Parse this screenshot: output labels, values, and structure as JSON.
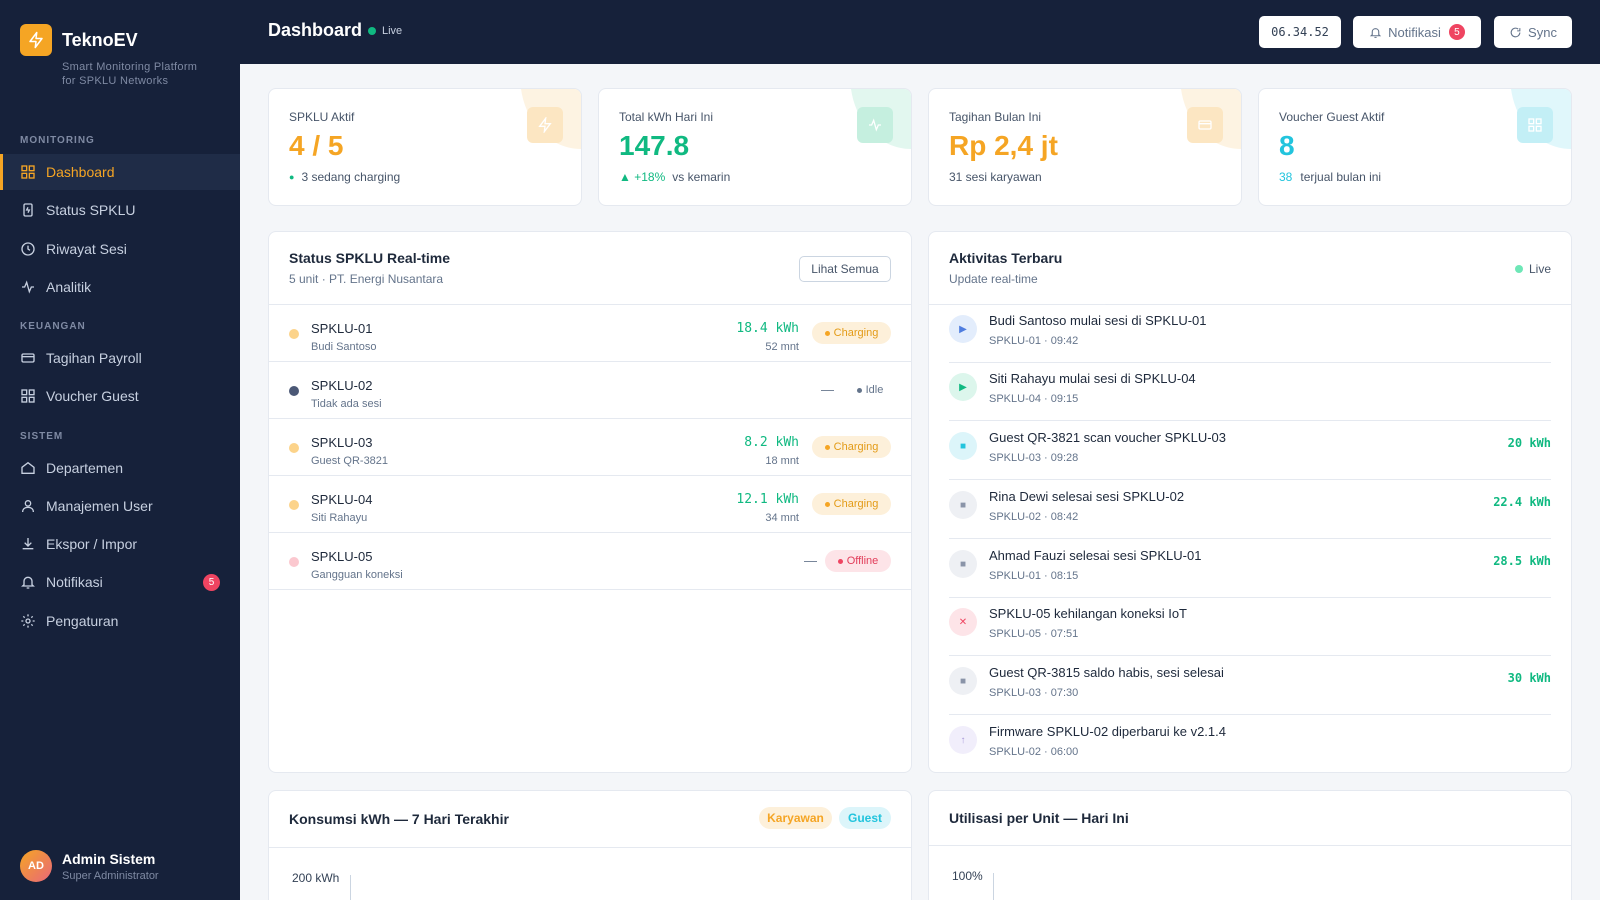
{
  "app": {
    "name": "TeknoEV",
    "subtitle_line1": "Smart Monitoring Platform",
    "subtitle_line2": "for SPKLU Networks"
  },
  "sidebar": {
    "sections": {
      "monitoring": "MONITORING",
      "keuangan": "KEUANGAN",
      "sistem": "SISTEM"
    },
    "items": [
      {
        "label": "Dashboard",
        "icon": "grid-icon",
        "active": true
      },
      {
        "label": "Status SPKLU",
        "icon": "charger-icon"
      },
      {
        "label": "Riwayat Sesi",
        "icon": "clock-icon"
      },
      {
        "label": "Analitik",
        "icon": "activity-icon"
      },
      {
        "label": "Tagihan Payroll",
        "icon": "card-icon"
      },
      {
        "label": "Voucher Guest",
        "icon": "qr-icon"
      },
      {
        "label": "Departemen",
        "icon": "home-icon"
      },
      {
        "label": "Manajemen User",
        "icon": "user-icon"
      },
      {
        "label": "Ekspor / Impor",
        "icon": "download-icon"
      },
      {
        "label": "Notifikasi",
        "icon": "bell-icon",
        "badge": "5"
      },
      {
        "label": "Pengaturan",
        "icon": "gear-icon"
      }
    ],
    "user": {
      "initials": "AD",
      "name": "Admin Sistem",
      "role": "Super Administrator"
    }
  },
  "header": {
    "title": "Dashboard",
    "live_label": "Live",
    "clock": "06.34.52",
    "notif_label": "Notifikasi",
    "notif_count": "5",
    "sync_label": "Sync"
  },
  "stats": [
    {
      "label": "SPKLU Aktif",
      "value": "4 / 5",
      "sub_prefix": "●",
      "sub": "3 sedang charging",
      "color": "#f5a524"
    },
    {
      "label": "Total kWh Hari Ini",
      "value": "147.8",
      "sub_prefix": "▲ +18%",
      "sub": "vs kemarin",
      "color": "#10b981"
    },
    {
      "label": "Tagihan Bulan Ini",
      "value": "Rp 2,4 jt",
      "sub_prefix": "",
      "sub": "31 sesi karyawan",
      "color": "#f5a524"
    },
    {
      "label": "Voucher Guest Aktif",
      "value": "8",
      "sub_prefix": "38",
      "sub": "terjual bulan ini",
      "color": "#22c4dd"
    }
  ],
  "status_panel": {
    "title": "Status SPKLU Real-time",
    "subtitle": "5 unit · PT. Energi Nusantara",
    "button": "Lihat Semua",
    "rows": [
      {
        "name": "SPKLU-01",
        "user": "Budi Santoso",
        "kwh": "18.4 kWh",
        "duration": "52 mnt",
        "status": "Charging",
        "state": "charging"
      },
      {
        "name": "SPKLU-02",
        "user": "Tidak ada sesi",
        "kwh": "—",
        "duration": "",
        "status": "Idle",
        "state": "idle"
      },
      {
        "name": "SPKLU-03",
        "user": "Guest QR-3821",
        "kwh": "8.2 kWh",
        "duration": "18 mnt",
        "status": "Charging",
        "state": "charging"
      },
      {
        "name": "SPKLU-04",
        "user": "Siti Rahayu",
        "kwh": "12.1 kWh",
        "duration": "34 mnt",
        "status": "Charging",
        "state": "charging"
      },
      {
        "name": "SPKLU-05",
        "user": "Gangguan koneksi",
        "kwh": "—",
        "duration": "",
        "status": "Offline",
        "state": "offline"
      }
    ]
  },
  "activity_panel": {
    "title": "Aktivitas Terbaru",
    "subtitle": "Update real-time",
    "live_label": "Live",
    "items": [
      {
        "text": "Budi Santoso mulai sesi di SPKLU-01",
        "meta": "SPKLU-01 · 09:42",
        "kwh": "",
        "type": "start-blue"
      },
      {
        "text": "Siti Rahayu mulai sesi di SPKLU-04",
        "meta": "SPKLU-04 · 09:15",
        "kwh": "",
        "type": "start-green"
      },
      {
        "text": "Guest QR-3821 scan voucher SPKLU-03",
        "meta": "SPKLU-03 · 09:28",
        "kwh": "20 kWh",
        "type": "scan"
      },
      {
        "text": "Rina Dewi selesai sesi SPKLU-02",
        "meta": "SPKLU-02 · 08:42",
        "kwh": "22.4 kWh",
        "type": "stop"
      },
      {
        "text": "Ahmad Fauzi selesai sesi SPKLU-01",
        "meta": "SPKLU-01 · 08:15",
        "kwh": "28.5 kWh",
        "type": "stop"
      },
      {
        "text": "SPKLU-05 kehilangan koneksi IoT",
        "meta": "SPKLU-05 · 07:51",
        "kwh": "",
        "type": "error"
      },
      {
        "text": "Guest QR-3815 saldo habis, sesi selesai",
        "meta": "SPKLU-03 · 07:30",
        "kwh": "30 kWh",
        "type": "stop"
      },
      {
        "text": "Firmware SPKLU-02 diperbarui ke v2.1.4",
        "meta": "SPKLU-02 · 06:00",
        "kwh": "",
        "type": "update"
      }
    ]
  },
  "consumption_panel": {
    "title": "Konsumsi kWh — 7 Hari Terakhir",
    "legend": [
      "Karyawan",
      "Guest"
    ],
    "y_top_label": "200 kWh"
  },
  "utilization_panel": {
    "title": "Utilisasi per Unit — Hari Ini",
    "y_top_label": "100%"
  },
  "colors": {
    "accent": "#f5a524",
    "green": "#10b981",
    "cyan": "#22c4dd",
    "red": "#ef4461",
    "navy": "#16213a"
  }
}
